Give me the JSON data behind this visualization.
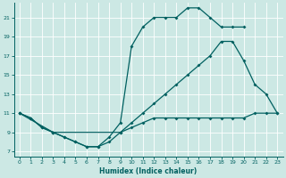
{
  "xlabel": "Humidex (Indice chaleur)",
  "bg_color": "#cce8e4",
  "grid_color": "#ffffff",
  "line_color": "#006060",
  "xlim": [
    -0.5,
    23.5
  ],
  "ylim": [
    6.5,
    22.5
  ],
  "xticks": [
    0,
    1,
    2,
    3,
    4,
    5,
    6,
    7,
    8,
    9,
    10,
    11,
    12,
    13,
    14,
    15,
    16,
    17,
    18,
    19,
    20,
    21,
    22,
    23
  ],
  "yticks": [
    7,
    9,
    11,
    13,
    15,
    17,
    19,
    21
  ],
  "line1_x": [
    0,
    1,
    2,
    3,
    4,
    5,
    6,
    7,
    8,
    9,
    10,
    11,
    12,
    13,
    14,
    15,
    16,
    17,
    18,
    19,
    20,
    21,
    22,
    23
  ],
  "line1_y": [
    11,
    10.5,
    9.5,
    9,
    8.5,
    8,
    7.5,
    7.5,
    8,
    9,
    9.5,
    10,
    10.5,
    10.5,
    10.5,
    10.5,
    10.5,
    10.5,
    10.5,
    10.5,
    10.5,
    11,
    11,
    11
  ],
  "line2_x": [
    0,
    1,
    2,
    3,
    4,
    5,
    6,
    7,
    8,
    9,
    10,
    11,
    12,
    13,
    14,
    15,
    16,
    17,
    18,
    19,
    20
  ],
  "line2_y": [
    11,
    10.5,
    9.5,
    9,
    8.5,
    8,
    7.5,
    7.5,
    8.5,
    10,
    18,
    20,
    21,
    21,
    21,
    22,
    22,
    21,
    20,
    20,
    20
  ],
  "line3_x": [
    0,
    3,
    9,
    10,
    11,
    12,
    13,
    14,
    15,
    16,
    17,
    18,
    19,
    20,
    21,
    22,
    23
  ],
  "line3_y": [
    11,
    9,
    9,
    10,
    11,
    12,
    13,
    14,
    15,
    16,
    17,
    18.5,
    18.5,
    16.5,
    14,
    13,
    11
  ]
}
